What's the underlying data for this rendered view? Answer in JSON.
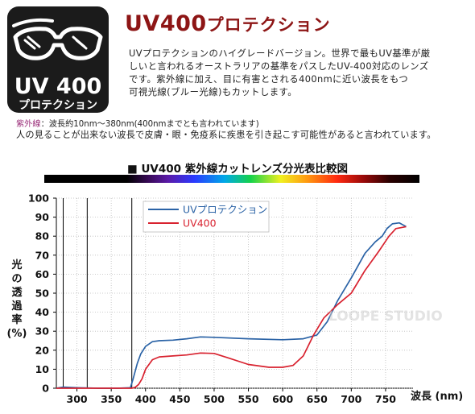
{
  "badge": {
    "big": "UV 400",
    "small": "プロテクション",
    "icon": "sunglasses-icon"
  },
  "headline": {
    "main": "UV400",
    "sub": "プロテクション"
  },
  "description": [
    "UVプロテクションのハイグレードバージョン。世界で最もUV基準が厳",
    "しいと言われるオーストラリアの基準をパスしたUV-400対応のレンズ",
    "です。紫外線に加え、目に有害とされる400nmに近い波長をもつ",
    "可視光線(ブルー光線)もカットします。"
  ],
  "notes": {
    "uv_key": "紫外線",
    "uv_def": "：波長約10nm～380nm(400nmまでとも言われています)",
    "line2": "人の見ることが出来ない波長で皮膚・眼・免疫系に疾患を引き起こす可能性があると言われています。"
  },
  "chart_title_prefix": "■",
  "chart_data": {
    "type": "line",
    "title": "UV400 紫外線カットレンズ分光表比較図",
    "xlabel": "波長 (nm)",
    "ylabel": "光の透過率(%)",
    "ylabel_chars": [
      "光",
      "の",
      "透",
      "過",
      "率",
      "(%)"
    ],
    "xlim": [
      270,
      790
    ],
    "ylim": [
      0,
      100
    ],
    "xticks": [
      300,
      350,
      400,
      450,
      500,
      550,
      600,
      650,
      700,
      750
    ],
    "yticks": [
      0,
      10,
      20,
      30,
      40,
      50,
      60,
      70,
      80,
      90,
      100
    ],
    "vlines": [
      280,
      315,
      380
    ],
    "legend_position": "top-center",
    "series": [
      {
        "name": "UVプロテクション",
        "color": "#2b63a6",
        "x": [
          270,
          280,
          300,
          330,
          360,
          378,
          382,
          388,
          393,
          400,
          410,
          420,
          440,
          460,
          480,
          500,
          550,
          600,
          630,
          650,
          665,
          680,
          700,
          720,
          735,
          745,
          752,
          760,
          770,
          780
        ],
        "y": [
          0,
          0.6,
          0.3,
          0,
          0,
          0.3,
          5,
          13,
          18,
          22,
          24.5,
          25,
          25.3,
          26,
          27,
          26.8,
          26,
          25.5,
          26,
          28,
          35,
          46,
          58,
          71,
          77,
          80,
          84,
          86.5,
          87,
          85
        ]
      },
      {
        "name": "UV400",
        "color": "#d8222f",
        "x": [
          270,
          280,
          300,
          330,
          360,
          380,
          385,
          390,
          395,
          400,
          410,
          420,
          440,
          460,
          480,
          500,
          520,
          550,
          580,
          600,
          615,
          630,
          645,
          660,
          680,
          700,
          720,
          740,
          755,
          765,
          780
        ],
        "y": [
          0,
          0,
          0,
          0,
          0,
          0,
          0.5,
          2,
          5,
          10,
          15,
          16.5,
          17,
          17.5,
          18.5,
          18.3,
          16,
          12.5,
          11,
          11,
          12,
          17,
          28,
          37,
          44,
          50,
          62,
          72,
          80,
          84,
          85
        ]
      }
    ]
  },
  "watermark": "LOOPE STUDIO"
}
